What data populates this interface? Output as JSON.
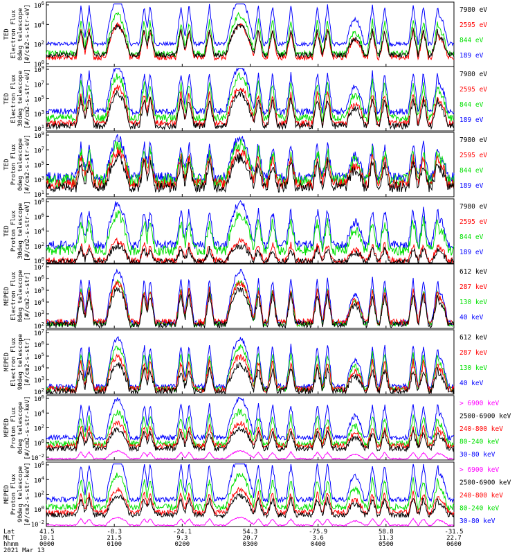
{
  "colors": {
    "black": "#000000",
    "red": "#ff0000",
    "green": "#00e000",
    "blue": "#0000ff",
    "magenta": "#ff00ff"
  },
  "panels": [
    {
      "ylabel_lines": [
        "TED",
        "Electron Flux",
        "0deg telescope",
        "[#/cm2-s-str-eV]"
      ],
      "yticks": [
        {
          "base": "10",
          "exp": "6"
        },
        {
          "base": "10",
          "exp": "4"
        },
        {
          "base": "10",
          "exp": "2"
        },
        {
          "base": "10",
          "exp": "0"
        }
      ],
      "legend": [
        {
          "label": "7980 eV",
          "color": "#000000"
        },
        {
          "label": "2595 eV",
          "color": "#ff0000"
        },
        {
          "label": "844 eV",
          "color": "#00e000"
        },
        {
          "label": "189 eV",
          "color": "#0000ff"
        }
      ]
    },
    {
      "ylabel_lines": [
        "TED",
        "Electron Flux",
        "30deg telescope",
        "[#/cm2-s-str-eV]"
      ],
      "yticks": [
        {
          "base": "10",
          "exp": "9"
        },
        {
          "base": "10",
          "exp": "7"
        },
        {
          "base": "10",
          "exp": "5"
        },
        {
          "base": "10",
          "exp": "3"
        },
        {
          "base": "10",
          "exp": "1"
        }
      ],
      "legend": [
        {
          "label": "7980 eV",
          "color": "#000000"
        },
        {
          "label": "2595 eV",
          "color": "#ff0000"
        },
        {
          "label": "844 eV",
          "color": "#00e000"
        },
        {
          "label": "189 eV",
          "color": "#0000ff"
        }
      ]
    },
    {
      "ylabel_lines": [
        "TED",
        "Proton Flux",
        "0deg telescope",
        "[#/cm2-s-str-eV]"
      ],
      "yticks": [
        {
          "base": "10",
          "exp": "9"
        },
        {
          "base": "10",
          "exp": "7"
        },
        {
          "base": "10",
          "exp": "5"
        },
        {
          "base": "10",
          "exp": "3"
        },
        {
          "base": "10",
          "exp": "1"
        }
      ],
      "legend": [
        {
          "label": "7980 eV",
          "color": "#000000"
        },
        {
          "label": "2595 eV",
          "color": "#ff0000"
        },
        {
          "label": "844 eV",
          "color": "#00e000"
        },
        {
          "label": "189 eV",
          "color": "#0000ff"
        }
      ]
    },
    {
      "ylabel_lines": [
        "TED",
        "Proton Flux",
        "30deg telescope",
        "[#/cm2-s-str-eV]"
      ],
      "yticks": [
        {
          "base": "10",
          "exp": "8"
        },
        {
          "base": "10",
          "exp": "6"
        },
        {
          "base": "10",
          "exp": "4"
        },
        {
          "base": "10",
          "exp": "2"
        },
        {
          "base": "10",
          "exp": "0"
        }
      ],
      "legend": [
        {
          "label": "7980 eV",
          "color": "#000000"
        },
        {
          "label": "2595 eV",
          "color": "#ff0000"
        },
        {
          "label": "844 eV",
          "color": "#00e000"
        },
        {
          "label": "189 eV",
          "color": "#0000ff"
        }
      ]
    },
    {
      "ylabel_lines": [
        "MEPED",
        "Electron Flux",
        "0deg telescope",
        "[#/cm2-s-str]"
      ],
      "yticks": [
        {
          "base": "10",
          "exp": "7"
        },
        {
          "base": "10",
          "exp": "6"
        },
        {
          "base": "10",
          "exp": "5"
        },
        {
          "base": "10",
          "exp": "4"
        },
        {
          "base": "10",
          "exp": "3"
        },
        {
          "base": "10",
          "exp": "2"
        }
      ],
      "legend": [
        {
          "label": "612 keV",
          "color": "#000000"
        },
        {
          "label": "287 keV",
          "color": "#ff0000"
        },
        {
          "label": "130 keV",
          "color": "#00e000"
        },
        {
          "label": "40 keV",
          "color": "#0000ff"
        }
      ]
    },
    {
      "ylabel_lines": [
        "MEPED",
        "Electron Flux",
        "90deg telescope",
        "[#/cm2-s-str]"
      ],
      "yticks": [
        {
          "base": "10",
          "exp": "7"
        },
        {
          "base": "10",
          "exp": "6"
        },
        {
          "base": "10",
          "exp": "5"
        },
        {
          "base": "10",
          "exp": "4"
        },
        {
          "base": "10",
          "exp": "3"
        },
        {
          "base": "10",
          "exp": "2"
        }
      ],
      "legend": [
        {
          "label": "612 keV",
          "color": "#000000"
        },
        {
          "label": "287 keV",
          "color": "#ff0000"
        },
        {
          "label": "130 keV",
          "color": "#00e000"
        },
        {
          "label": "40 keV",
          "color": "#0000ff"
        }
      ]
    },
    {
      "ylabel_lines": [
        "MEPED",
        "Proton Flux",
        "0deg telescope",
        "[#/cm2-s-str-keV]"
      ],
      "yticks": [
        {
          "base": "10",
          "exp": "6"
        },
        {
          "base": "10",
          "exp": "4"
        },
        {
          "base": "10",
          "exp": "2"
        },
        {
          "base": "10",
          "exp": "0"
        },
        {
          "base": "10",
          "exp": "-2"
        }
      ],
      "legend": [
        {
          "label": "> 6900 keV",
          "color": "#ff00ff"
        },
        {
          "label": "2500-6900 keV",
          "color": "#000000"
        },
        {
          "label": "240-800 keV",
          "color": "#ff0000"
        },
        {
          "label": "80-240 keV",
          "color": "#00e000"
        },
        {
          "label": "30-80 keV",
          "color": "#0000ff"
        }
      ]
    },
    {
      "ylabel_lines": [
        "MEPED",
        "Proton Flux",
        "90deg telescope",
        "[#/cm2-s-str-keV]"
      ],
      "yticks": [
        {
          "base": "10",
          "exp": "6"
        },
        {
          "base": "10",
          "exp": "4"
        },
        {
          "base": "10",
          "exp": "2"
        },
        {
          "base": "10",
          "exp": "0"
        },
        {
          "base": "10",
          "exp": "-2"
        }
      ],
      "legend": [
        {
          "label": "> 6900 keV",
          "color": "#ff00ff"
        },
        {
          "label": "2500-6900 keV",
          "color": "#000000"
        },
        {
          "label": "240-800 keV",
          "color": "#ff0000"
        },
        {
          "label": "80-240 keV",
          "color": "#00e000"
        },
        {
          "label": "30-80 keV",
          "color": "#0000ff"
        }
      ]
    }
  ],
  "footer": {
    "labels": [
      "Lat",
      "MLT",
      "hhmm",
      "2021 Mar 13"
    ],
    "lat": [
      "41.5",
      "-8.3",
      "-24.1",
      "54.3",
      "-75.9",
      "58.8",
      "-31.5"
    ],
    "mlt": [
      "10.1",
      "21.5",
      "9.3",
      "20.7",
      "3.6",
      "11.3",
      "22.7"
    ],
    "hhmm": [
      "0000",
      "0100",
      "0200",
      "0300",
      "0400",
      "0500",
      "0600"
    ]
  },
  "chart_data": {
    "type": "line",
    "title": "",
    "xlabel": "",
    "x_ticks": [
      "0000",
      "0100",
      "0200",
      "0300",
      "0400",
      "0500",
      "0600"
    ],
    "xlim_hhmm": [
      "0000",
      "0600"
    ],
    "date": "2021 Mar 13",
    "yscale": "log",
    "panels": [
      {
        "ylabel": "TED Electron Flux 0deg telescope [#/cm2-s-str-eV]",
        "ylim": [
          1,
          1000000
        ],
        "series": [
          {
            "name": "7980 eV"
          },
          {
            "name": "2595 eV"
          },
          {
            "name": "844 eV"
          },
          {
            "name": "189 eV"
          }
        ]
      },
      {
        "ylabel": "TED Electron Flux 30deg telescope [#/cm2-s-str-eV]",
        "ylim": [
          10,
          1000000000
        ],
        "series": [
          {
            "name": "7980 eV"
          },
          {
            "name": "2595 eV"
          },
          {
            "name": "844 eV"
          },
          {
            "name": "189 eV"
          }
        ]
      },
      {
        "ylabel": "TED Proton Flux 0deg telescope [#/cm2-s-str-eV]",
        "ylim": [
          10,
          1000000000
        ],
        "series": [
          {
            "name": "7980 eV"
          },
          {
            "name": "2595 eV"
          },
          {
            "name": "844 eV"
          },
          {
            "name": "189 eV"
          }
        ]
      },
      {
        "ylabel": "TED Proton Flux 30deg telescope [#/cm2-s-str-eV]",
        "ylim": [
          1,
          100000000
        ],
        "series": [
          {
            "name": "7980 eV"
          },
          {
            "name": "2595 eV"
          },
          {
            "name": "844 eV"
          },
          {
            "name": "189 eV"
          }
        ]
      },
      {
        "ylabel": "MEPED Electron Flux 0deg telescope [#/cm2-s-str]",
        "ylim": [
          100,
          10000000
        ],
        "series": [
          {
            "name": "612 keV"
          },
          {
            "name": "287 keV"
          },
          {
            "name": "130 keV"
          },
          {
            "name": "40 keV"
          }
        ]
      },
      {
        "ylabel": "MEPED Electron Flux 90deg telescope [#/cm2-s-str]",
        "ylim": [
          100,
          10000000
        ],
        "series": [
          {
            "name": "612 keV"
          },
          {
            "name": "287 keV"
          },
          {
            "name": "130 keV"
          },
          {
            "name": "40 keV"
          }
        ]
      },
      {
        "ylabel": "MEPED Proton Flux 0deg telescope [#/cm2-s-str-keV]",
        "ylim": [
          0.01,
          1000000
        ],
        "series": [
          {
            "name": "> 6900 keV"
          },
          {
            "name": "2500-6900 keV"
          },
          {
            "name": "240-800 keV"
          },
          {
            "name": "80-240 keV"
          },
          {
            "name": "30-80 keV"
          }
        ]
      },
      {
        "ylabel": "MEPED Proton Flux 90deg telescope [#/cm2-s-str-keV]",
        "ylim": [
          0.01,
          1000000
        ],
        "series": [
          {
            "name": "> 6900 keV"
          },
          {
            "name": "2500-6900 keV"
          },
          {
            "name": "240-800 keV"
          },
          {
            "name": "80-240 keV"
          },
          {
            "name": "30-80 keV"
          }
        ]
      }
    ]
  }
}
